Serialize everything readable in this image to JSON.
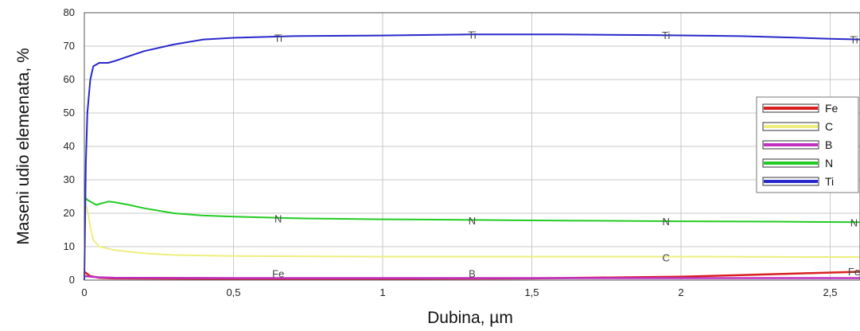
{
  "chart_data": {
    "type": "line",
    "xlabel": "Dubina, µm",
    "ylabel": "Maseni udio elemenata, %",
    "xlim": [
      0,
      2.6
    ],
    "ylim": [
      0,
      80
    ],
    "x_ticks": [
      "0",
      "0,5",
      "1",
      "1,5",
      "2",
      "2,5"
    ],
    "y_ticks": [
      "0",
      "10",
      "20",
      "30",
      "40",
      "50",
      "60",
      "70",
      "80"
    ],
    "grid": true,
    "legend_position": "right",
    "series": [
      {
        "name": "Fe",
        "color": "#d92020",
        "x": [
          0,
          0.02,
          0.05,
          0.1,
          0.5,
          1.0,
          1.5,
          1.8,
          2.0,
          2.2,
          2.4,
          2.6
        ],
        "y": [
          2.5,
          1.2,
          0.7,
          0.5,
          0.4,
          0.4,
          0.5,
          0.8,
          1.0,
          1.5,
          2.0,
          2.5
        ]
      },
      {
        "name": "C",
        "color": "#eeee80",
        "x": [
          0,
          0.01,
          0.02,
          0.03,
          0.05,
          0.1,
          0.2,
          0.3,
          0.5,
          1.0,
          1.5,
          2.0,
          2.5,
          2.6
        ],
        "y": [
          24,
          21,
          16,
          12,
          10,
          9,
          8,
          7.5,
          7.2,
          7,
          7,
          7,
          6.9,
          6.9
        ]
      },
      {
        "name": "B",
        "color": "#c030c0",
        "x": [
          0,
          0.05,
          0.1,
          0.5,
          1.0,
          1.5,
          2.0,
          2.5,
          2.6
        ],
        "y": [
          1.2,
          0.8,
          0.7,
          0.6,
          0.6,
          0.6,
          0.6,
          0.6,
          0.6
        ]
      },
      {
        "name": "N",
        "color": "#22cc22",
        "x": [
          0,
          0.01,
          0.02,
          0.04,
          0.06,
          0.08,
          0.1,
          0.15,
          0.2,
          0.3,
          0.4,
          0.5,
          0.7,
          1.0,
          1.3,
          1.6,
          2.0,
          2.3,
          2.6
        ],
        "y": [
          25,
          24,
          23.5,
          22.5,
          23,
          23.5,
          23.3,
          22.5,
          21.5,
          20,
          19.3,
          19,
          18.5,
          18.2,
          18,
          17.8,
          17.6,
          17.5,
          17.3
        ]
      },
      {
        "name": "Ti",
        "color": "#2828cc",
        "x": [
          0,
          0.005,
          0.01,
          0.02,
          0.03,
          0.05,
          0.08,
          0.1,
          0.15,
          0.2,
          0.3,
          0.4,
          0.5,
          0.7,
          1.0,
          1.3,
          1.6,
          1.9,
          2.2,
          2.4,
          2.5,
          2.6
        ],
        "y": [
          0,
          35,
          50,
          60,
          64,
          65,
          65,
          65.5,
          67,
          68.5,
          70.5,
          72,
          72.5,
          73,
          73.2,
          73.5,
          73.5,
          73.3,
          73,
          72.5,
          72.2,
          72
        ]
      }
    ],
    "annotations": [
      {
        "text": "Ti",
        "x": 0.65,
        "y": 72.5
      },
      {
        "text": "Ti",
        "x": 1.3,
        "y": 73.5
      },
      {
        "text": "Ti",
        "x": 1.95,
        "y": 73.3
      },
      {
        "text": "Ti",
        "x": 2.58,
        "y": 72
      },
      {
        "text": "N",
        "x": 0.65,
        "y": 18.5
      },
      {
        "text": "N",
        "x": 1.3,
        "y": 17.9
      },
      {
        "text": "N",
        "x": 1.95,
        "y": 17.6
      },
      {
        "text": "N",
        "x": 2.58,
        "y": 17.3
      },
      {
        "text": "C",
        "x": 1.95,
        "y": 6.8
      },
      {
        "text": "Fe",
        "x": 0.65,
        "y": 2.0
      },
      {
        "text": "B",
        "x": 1.3,
        "y": 2.0
      },
      {
        "text": "Fe",
        "x": 2.58,
        "y": 2.6
      }
    ]
  }
}
